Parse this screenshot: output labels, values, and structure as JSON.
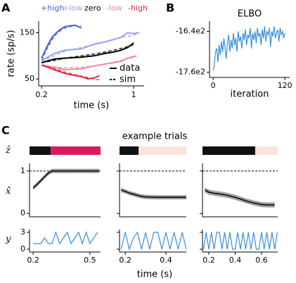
{
  "chart_data": [
    {
      "type": "rates",
      "panel": "A",
      "xlabel": "time (s)",
      "ylabel": "rate (sp/s)",
      "xscale": "log",
      "xlim": [
        0.19,
        1.2
      ],
      "ylim": [
        35,
        175
      ],
      "xticks": [
        0.2,
        1
      ],
      "yticks": [
        50,
        150
      ],
      "legend": [
        "data",
        "sim"
      ],
      "series": [
        {
          "name": "+high",
          "color": "#4a5fd8",
          "x": [
            0.2,
            0.22,
            0.24,
            0.26,
            0.28,
            0.3,
            0.33,
            0.36,
            0.4
          ],
          "values": [
            95,
            120,
            140,
            150,
            158,
            163,
            165,
            166,
            160
          ],
          "sim": [
            90,
            115,
            135,
            148,
            155,
            160,
            163,
            165,
            165
          ]
        },
        {
          "name": "+low",
          "color": "#98a3ea",
          "x": [
            0.2,
            0.25,
            0.3,
            0.4,
            0.5,
            0.6,
            0.7,
            0.8,
            0.9,
            1.0,
            1.1
          ],
          "values": [
            90,
            105,
            112,
            115,
            125,
            130,
            135,
            140,
            150,
            148,
            150
          ],
          "sim": [
            88,
            100,
            110,
            118,
            125,
            130,
            135,
            140,
            142,
            145,
            148
          ]
        },
        {
          "name": "zero",
          "color": "#000000",
          "x": [
            0.2,
            0.25,
            0.3,
            0.4,
            0.5,
            0.6,
            0.7,
            0.8,
            0.9,
            1.0
          ],
          "values": [
            85,
            93,
            95,
            97,
            100,
            105,
            108,
            112,
            118,
            128
          ],
          "sim": [
            85,
            90,
            95,
            100,
            104,
            108,
            112,
            116,
            120,
            124
          ]
        },
        {
          "name": "-low",
          "color": "#f08a9a",
          "x": [
            0.2,
            0.25,
            0.3,
            0.4,
            0.5,
            0.6,
            0.7,
            0.8,
            0.9,
            1.05
          ],
          "values": [
            80,
            75,
            70,
            72,
            78,
            82,
            85,
            88,
            95,
            100
          ],
          "sim": [
            80,
            76,
            74,
            75,
            78,
            82,
            86,
            90,
            94,
            98
          ]
        },
        {
          "name": "-high",
          "color": "#e0283c",
          "x": [
            0.2,
            0.25,
            0.3,
            0.35,
            0.4,
            0.45,
            0.5,
            0.55
          ],
          "values": [
            80,
            70,
            62,
            58,
            55,
            50,
            52,
            57
          ],
          "sim": [
            80,
            72,
            65,
            60,
            56,
            53,
            50,
            48
          ]
        }
      ]
    },
    {
      "type": "line",
      "panel": "B",
      "title": "ELBO",
      "xlabel": "iteration",
      "color": "#3a8fd8",
      "xlim": [
        -6,
        128
      ],
      "ylim": [
        -1775,
        -1610
      ],
      "xticks": [
        0,
        120
      ],
      "yticks": [
        {
          "value": -1640,
          "label": "-16.4e2"
        },
        {
          "value": -1760,
          "label": "-17.6e2"
        }
      ],
      "x": [
        0,
        2,
        4,
        6,
        8,
        10,
        12,
        14,
        16,
        18,
        20,
        22,
        24,
        26,
        28,
        30,
        32,
        34,
        36,
        38,
        40,
        42,
        44,
        46,
        48,
        50,
        52,
        54,
        56,
        58,
        60,
        62,
        64,
        66,
        68,
        70,
        72,
        74,
        76,
        78,
        80,
        82,
        84,
        86,
        88,
        90,
        92,
        94,
        96,
        98,
        100,
        102,
        104,
        106,
        108,
        110,
        112,
        114,
        116,
        118,
        120
      ],
      "values": [
        -1755,
        -1740,
        -1700,
        -1690,
        -1730,
        -1680,
        -1710,
        -1670,
        -1700,
        -1660,
        -1690,
        -1720,
        -1675,
        -1650,
        -1700,
        -1665,
        -1690,
        -1645,
        -1680,
        -1660,
        -1700,
        -1640,
        -1670,
        -1655,
        -1690,
        -1645,
        -1665,
        -1635,
        -1680,
        -1650,
        -1660,
        -1630,
        -1690,
        -1645,
        -1665,
        -1640,
        -1675,
        -1630,
        -1655,
        -1645,
        -1680,
        -1635,
        -1660,
        -1625,
        -1670,
        -1640,
        -1650,
        -1630,
        -1685,
        -1640,
        -1655,
        -1625,
        -1660,
        -1645,
        -1635,
        -1670,
        -1630,
        -1650,
        -1640,
        -1660,
        -1645
      ]
    },
    {
      "type": "trials",
      "panel": "C",
      "title": "example trials",
      "xlabel": "time (s)",
      "row_labels": [
        "ẑ",
        "x̂",
        "y"
      ],
      "xhat_ylim": [
        -0.08,
        1.18
      ],
      "xhat_yticks": [
        0,
        1
      ],
      "xhat_reference": 1,
      "y_ylim": [
        -0.5,
        3.5
      ],
      "y_yticks": [
        0,
        3
      ],
      "y_color": "#3a8fd8",
      "trials": [
        {
          "xlim": [
            0.181,
            0.556
          ],
          "xticks": [
            0.2,
            0.5
          ],
          "z_switch": 0.293,
          "z_colors": [
            "#111111",
            "#d81b60"
          ],
          "xhat": {
            "x": [
              0.2,
              0.22,
              0.24,
              0.26,
              0.28,
              0.3,
              0.35,
              0.4,
              0.45,
              0.5,
              0.55
            ],
            "values": [
              0.6,
              0.68,
              0.77,
              0.86,
              0.95,
              1,
              1,
              1,
              1,
              1,
              1
            ],
            "sd": 0.05
          },
          "y": {
            "x": [
              0.2,
              0.22,
              0.24,
              0.26,
              0.28,
              0.3,
              0.32,
              0.34,
              0.36,
              0.38,
              0.4,
              0.42,
              0.44,
              0.46,
              0.48,
              0.5,
              0.52,
              0.54
            ],
            "values": [
              1,
              1,
              1,
              2,
              1,
              1,
              3,
              1,
              2,
              3,
              1,
              2,
              3,
              1,
              3,
              1,
              2,
              3
            ]
          }
        },
        {
          "xlim": [
            0.172,
            0.5
          ],
          "xticks": [
            0.2,
            0.4
          ],
          "z_switch": 0.266,
          "z_colors": [
            "#111111",
            "#fbe3da"
          ],
          "xhat": {
            "x": [
              0.18,
              0.2,
              0.22,
              0.25,
              0.28,
              0.3,
              0.35,
              0.4,
              0.45,
              0.5
            ],
            "values": [
              0.55,
              0.52,
              0.48,
              0.44,
              0.4,
              0.39,
              0.38,
              0.38,
              0.38,
              0.38
            ],
            "sd": 0.05
          },
          "y": {
            "x": [
              0.18,
              0.2,
              0.22,
              0.24,
              0.26,
              0.28,
              0.3,
              0.32,
              0.34,
              0.36,
              0.38,
              0.4,
              0.42,
              0.44,
              0.46,
              0.48,
              0.5
            ],
            "values": [
              0,
              3,
              0,
              2,
              3,
              0,
              3,
              0,
              3,
              3,
              0,
              3,
              0,
              3,
              0,
              3,
              0
            ]
          }
        },
        {
          "xlim": [
            0.152,
            0.723
          ],
          "xticks": [
            0.2,
            0.4,
            0.6
          ],
          "z_switch": 0.552,
          "z_colors": [
            "#111111",
            "#fbe3da"
          ],
          "xhat": {
            "x": [
              0.17,
              0.2,
              0.25,
              0.3,
              0.35,
              0.4,
              0.45,
              0.5,
              0.55,
              0.6,
              0.65,
              0.7
            ],
            "values": [
              0.55,
              0.5,
              0.47,
              0.45,
              0.42,
              0.38,
              0.33,
              0.28,
              0.24,
              0.21,
              0.2,
              0.2
            ],
            "sd": 0.06
          },
          "y": {
            "x": [
              0.16,
              0.18,
              0.2,
              0.22,
              0.24,
              0.26,
              0.28,
              0.3,
              0.32,
              0.34,
              0.36,
              0.38,
              0.4,
              0.42,
              0.44,
              0.46,
              0.48,
              0.5,
              0.52,
              0.54,
              0.56,
              0.58,
              0.6,
              0.62,
              0.64,
              0.66,
              0.68,
              0.7,
              0.72
            ],
            "values": [
              0,
              3,
              0,
              3,
              0,
              3,
              3,
              0,
              3,
              0,
              3,
              0,
              0,
              3,
              0,
              3,
              0,
              3,
              0,
              3,
              0,
              0,
              3,
              0,
              3,
              0,
              3,
              0,
              3
            ]
          }
        }
      ]
    }
  ]
}
